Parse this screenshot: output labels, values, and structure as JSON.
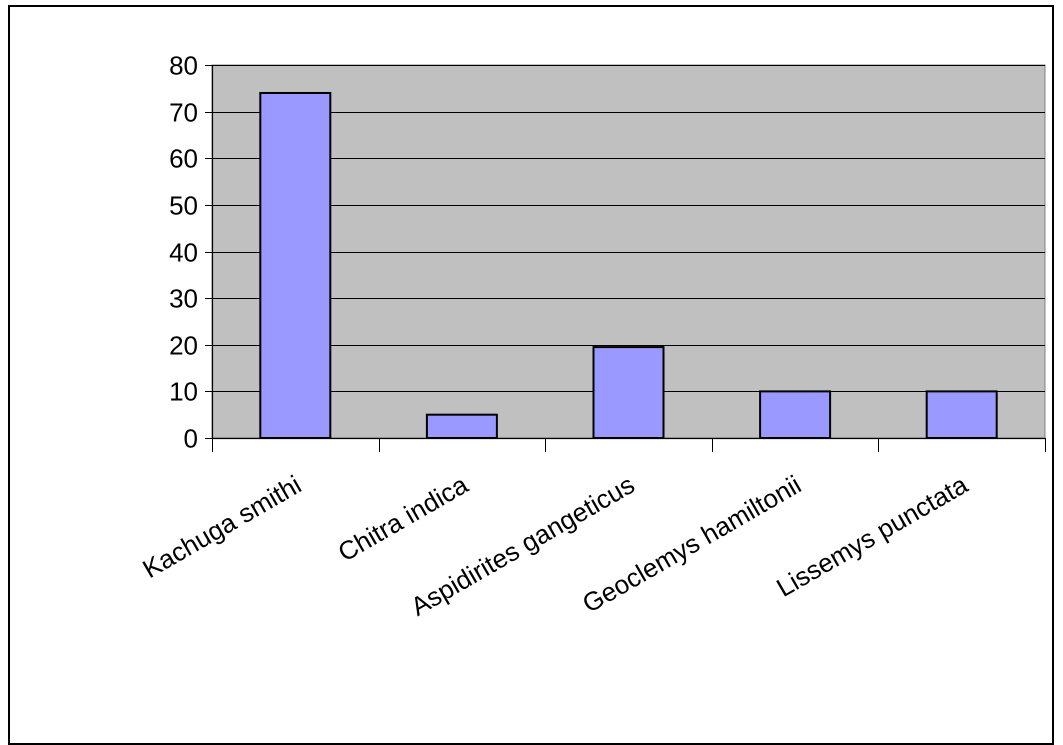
{
  "chart_data": {
    "type": "bar",
    "title": "",
    "xlabel": "",
    "ylabel": "",
    "categories": [
      "Kachuga smithi",
      "Chitra indica",
      "Aspidirites gangeticus",
      "Geoclemys hamiltonii",
      "Lissemys punctata"
    ],
    "values": [
      74,
      5,
      19.5,
      10,
      10
    ],
    "ylim": [
      0,
      80
    ],
    "yticks": [
      "0",
      "10",
      "20",
      "30",
      "40",
      "50",
      "60",
      "70",
      "80"
    ],
    "grid": true,
    "legend": "none"
  },
  "colors": {
    "plot_background": "#c0c0c0",
    "bar_fill": "#9999ff",
    "bar_stroke": "#000000",
    "gridline": "#000000"
  }
}
